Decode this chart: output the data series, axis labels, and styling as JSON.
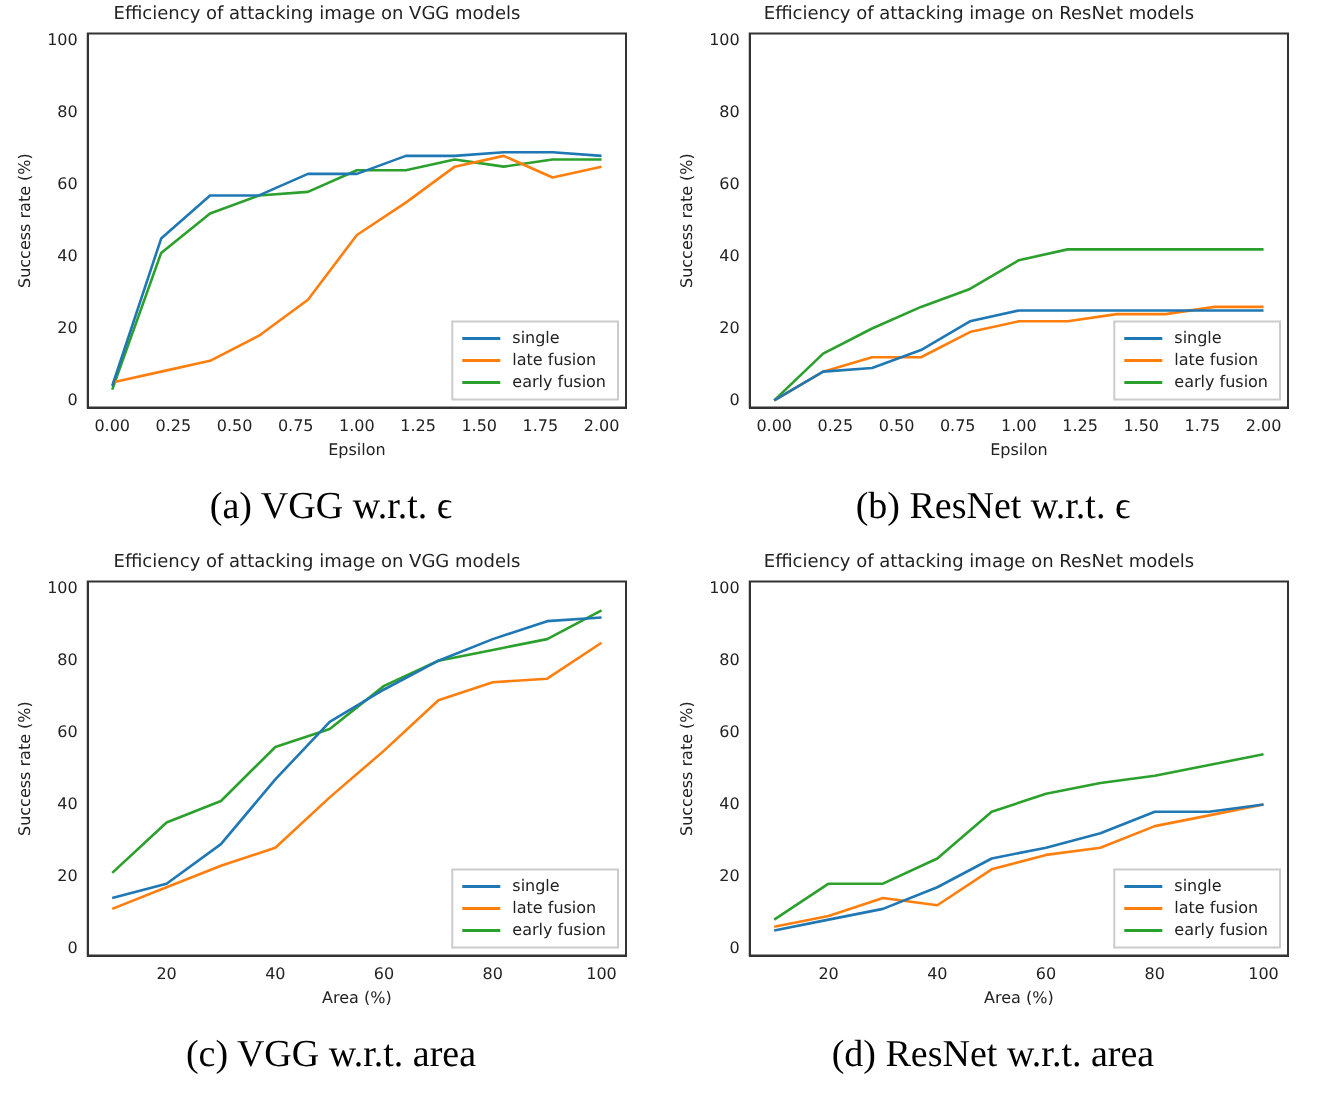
{
  "chart_data": [
    {
      "type": "line",
      "title": "Efficiency of attacking image on VGG models",
      "xlabel": "Epsilon",
      "ylabel": "Success rate (%)",
      "annotations": [
        "(a) VGG w.r.t. ϵ"
      ],
      "x": [
        0,
        0.2,
        0.4,
        0.6,
        0.8,
        1.0,
        1.2,
        1.4,
        1.6,
        1.8,
        2.0
      ],
      "xlim": [
        -0.1,
        2.1
      ],
      "xticks": [
        {
          "value": 0,
          "label": "0.00"
        },
        {
          "value": 0.25,
          "label": "0.25"
        },
        {
          "value": 0.5,
          "label": "0.50"
        },
        {
          "value": 0.75,
          "label": "0.75"
        },
        {
          "value": 1,
          "label": "1.00"
        },
        {
          "value": 1.25,
          "label": "1.25"
        },
        {
          "value": 1.5,
          "label": "1.50"
        },
        {
          "value": 1.75,
          "label": "1.75"
        },
        {
          "value": 2,
          "label": "2.00"
        }
      ],
      "ylim": [
        -2,
        102
      ],
      "yticks": [
        0,
        20,
        40,
        60,
        80,
        100
      ],
      "legend": "bottom right",
      "series": [
        {
          "name": "single",
          "color": "#1f77b4",
          "values": [
            4,
            45,
            57,
            57,
            63,
            63,
            68,
            68,
            69,
            69,
            68
          ]
        },
        {
          "name": "late fusion",
          "color": "#ff7f0e",
          "values": [
            5,
            8,
            11,
            18,
            28,
            46,
            55,
            65,
            68,
            62,
            65
          ]
        },
        {
          "name": "early fusion",
          "color": "#2ca02c",
          "values": [
            3,
            41,
            52,
            57,
            58,
            64,
            64,
            67,
            65,
            67,
            67
          ]
        }
      ]
    },
    {
      "type": "line",
      "title": "Efficiency of attacking image on ResNet models",
      "xlabel": "Epsilon",
      "ylabel": "Success rate (%)",
      "annotations": [
        "(b) ResNet w.r.t. ϵ"
      ],
      "x": [
        0,
        0.2,
        0.4,
        0.6,
        0.8,
        1.0,
        1.2,
        1.4,
        1.6,
        1.8,
        2.0
      ],
      "xlim": [
        -0.1,
        2.1
      ],
      "xticks": [
        {
          "value": 0,
          "label": "0.00"
        },
        {
          "value": 0.25,
          "label": "0.25"
        },
        {
          "value": 0.5,
          "label": "0.50"
        },
        {
          "value": 0.75,
          "label": "0.75"
        },
        {
          "value": 1,
          "label": "1.00"
        },
        {
          "value": 1.25,
          "label": "1.25"
        },
        {
          "value": 1.5,
          "label": "1.50"
        },
        {
          "value": 1.75,
          "label": "1.75"
        },
        {
          "value": 2,
          "label": "2.00"
        }
      ],
      "ylim": [
        -2,
        102
      ],
      "yticks": [
        0,
        20,
        40,
        60,
        80,
        100
      ],
      "legend": "bottom right",
      "series": [
        {
          "name": "single",
          "color": "#1f77b4",
          "values": [
            0,
            8,
            9,
            14,
            22,
            25,
            25,
            25,
            25,
            25,
            25
          ]
        },
        {
          "name": "late fusion",
          "color": "#ff7f0e",
          "values": [
            0,
            8,
            12,
            12,
            19,
            22,
            22,
            24,
            24,
            26,
            26
          ]
        },
        {
          "name": "early fusion",
          "color": "#2ca02c",
          "values": [
            0,
            13,
            20,
            26,
            31,
            39,
            42,
            42,
            42,
            42,
            42
          ]
        }
      ]
    },
    {
      "type": "line",
      "title": "Efficiency of attacking image on VGG models",
      "xlabel": "Area (%)",
      "ylabel": "Success rate (%)",
      "annotations": [
        "(c) VGG w.r.t. area"
      ],
      "x": [
        10,
        20,
        30,
        40,
        50,
        60,
        70,
        80,
        90,
        100
      ],
      "xlim": [
        5.5,
        104.5
      ],
      "xticks": [
        20,
        40,
        60,
        80,
        100
      ],
      "ylim": [
        -2,
        102
      ],
      "yticks": [
        0,
        20,
        40,
        60,
        80,
        100
      ],
      "legend": "bottom right",
      "series": [
        {
          "name": "single",
          "color": "#1f77b4",
          "values": [
            14,
            18,
            29,
            47,
            63,
            72,
            80,
            86,
            91,
            92
          ]
        },
        {
          "name": "late fusion",
          "color": "#ff7f0e",
          "values": [
            11,
            17,
            23,
            28,
            42,
            55,
            69,
            74,
            75,
            85
          ]
        },
        {
          "name": "early fusion",
          "color": "#2ca02c",
          "values": [
            21,
            35,
            41,
            56,
            61,
            73,
            80,
            83,
            86,
            94
          ]
        }
      ]
    },
    {
      "type": "line",
      "title": "Efficiency of attacking image on ResNet models",
      "xlabel": "Area (%)",
      "ylabel": "Success rate (%)",
      "annotations": [
        "(d) ResNet w.r.t. area"
      ],
      "x": [
        10,
        20,
        30,
        40,
        50,
        60,
        70,
        80,
        90,
        100
      ],
      "xlim": [
        5.5,
        104.5
      ],
      "xticks": [
        20,
        40,
        60,
        80,
        100
      ],
      "ylim": [
        -2,
        102
      ],
      "yticks": [
        0,
        20,
        40,
        60,
        80,
        100
      ],
      "legend": "bottom right",
      "series": [
        {
          "name": "single",
          "color": "#1f77b4",
          "values": [
            5,
            8,
            11,
            17,
            25,
            28,
            32,
            38,
            38,
            40
          ]
        },
        {
          "name": "late fusion",
          "color": "#ff7f0e",
          "values": [
            6,
            9,
            14,
            12,
            22,
            26,
            28,
            34,
            37,
            40
          ]
        },
        {
          "name": "early fusion",
          "color": "#2ca02c",
          "values": [
            8,
            18,
            18,
            25,
            38,
            43,
            46,
            48,
            51,
            54
          ]
        }
      ]
    }
  ]
}
